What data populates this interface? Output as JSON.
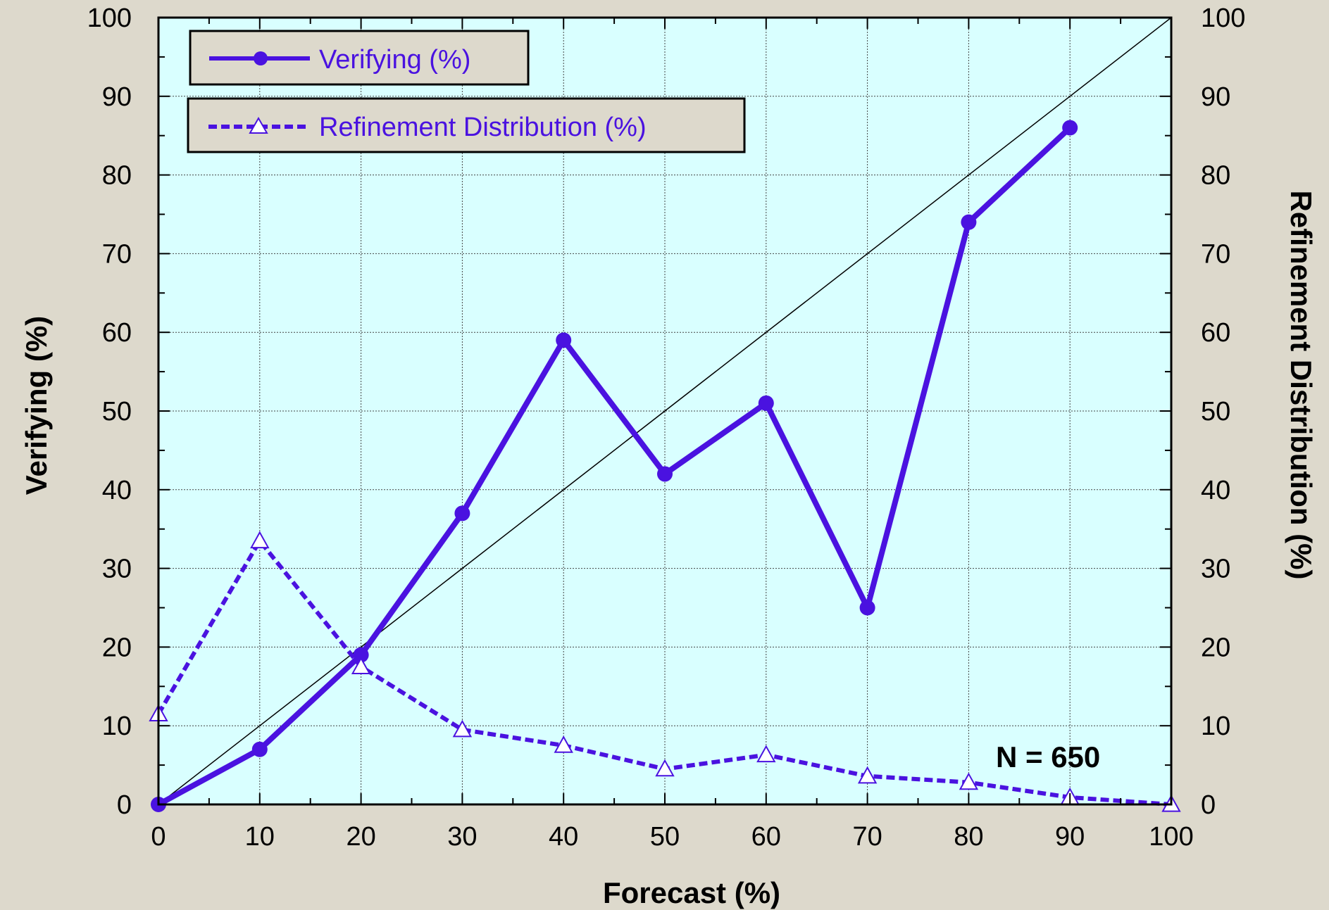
{
  "chart_data": {
    "type": "line",
    "xlabel": "Forecast (%)",
    "ylabel": "Verifying (%)",
    "y2label": "Refinement Distribution (%)",
    "xlim": [
      0,
      100
    ],
    "ylim": [
      0,
      100
    ],
    "y2lim": [
      0,
      100
    ],
    "x_ticks": [
      "0",
      "10",
      "20",
      "30",
      "40",
      "50",
      "60",
      "70",
      "80",
      "90",
      "100"
    ],
    "y_ticks": [
      "0",
      "10",
      "20",
      "30",
      "40",
      "50",
      "60",
      "70",
      "80",
      "90",
      "100"
    ],
    "y2_ticks": [
      "0",
      "10",
      "20",
      "30",
      "40",
      "50",
      "60",
      "70",
      "80",
      "90",
      "100"
    ],
    "grid": true,
    "legend_position": "top-left",
    "plot_background": "#d9ffff",
    "page_background": "#ddd9cc",
    "reference_line": {
      "x": [
        0,
        100
      ],
      "y": [
        0,
        100
      ],
      "color": "#000000"
    },
    "series": [
      {
        "name": "Verifying (%)",
        "style": "solid",
        "marker": "filled-circle",
        "color": "#4a12e0",
        "x": [
          0,
          10,
          20,
          30,
          40,
          50,
          60,
          70,
          80,
          90
        ],
        "y": [
          0,
          7,
          19,
          37,
          59,
          42,
          51,
          25,
          74,
          86
        ]
      },
      {
        "name": "Refinement Distribution (%)",
        "style": "dashed",
        "marker": "open-triangle",
        "color": "#4a12e0",
        "x": [
          0,
          10,
          20,
          30,
          40,
          50,
          60,
          70,
          80,
          90,
          100
        ],
        "y": [
          11.5,
          33.5,
          17.5,
          9.5,
          7.5,
          4.5,
          6.3,
          3.6,
          2.8,
          0.9,
          0
        ]
      }
    ],
    "annotation": "N = 650"
  }
}
